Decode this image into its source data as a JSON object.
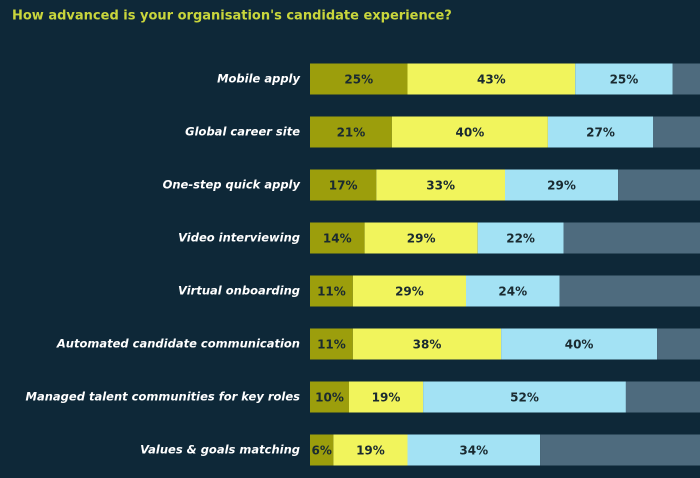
{
  "chart_data": {
    "type": "stacked-bar-horizontal",
    "title": "How advanced is your organisation's candidate experience?",
    "categories": [
      "Mobile apply",
      "Global career site",
      "One-step quick apply",
      "Video interviewing",
      "Virtual onboarding",
      "Automated candidate communication",
      "Managed talent communities for key roles",
      "Values & goals matching"
    ],
    "xlim": [
      0,
      100
    ],
    "series": [
      {
        "color": "#9c9e0c",
        "values": [
          25,
          21,
          17,
          14,
          11,
          11,
          10,
          6
        ],
        "value_labels": [
          "25%",
          "21%",
          "17%",
          "14%",
          "11%",
          "11%",
          "10%",
          "6%"
        ]
      },
      {
        "color": "#f1f45c",
        "values": [
          43,
          40,
          33,
          29,
          29,
          38,
          19,
          19
        ],
        "value_labels": [
          "43%",
          "40%",
          "33%",
          "29%",
          "29%",
          "38%",
          "19%",
          "19%"
        ]
      },
      {
        "color": "#a3e2f4",
        "values": [
          25,
          27,
          29,
          22,
          24,
          40,
          52,
          34
        ],
        "value_labels": [
          "25%",
          "27%",
          "29%",
          "22%",
          "24%",
          "40%",
          "52%",
          "34%"
        ]
      },
      {
        "color": "#4e6b7e",
        "values": [
          7,
          12,
          21,
          35,
          36,
          11,
          19,
          41
        ]
      }
    ]
  }
}
